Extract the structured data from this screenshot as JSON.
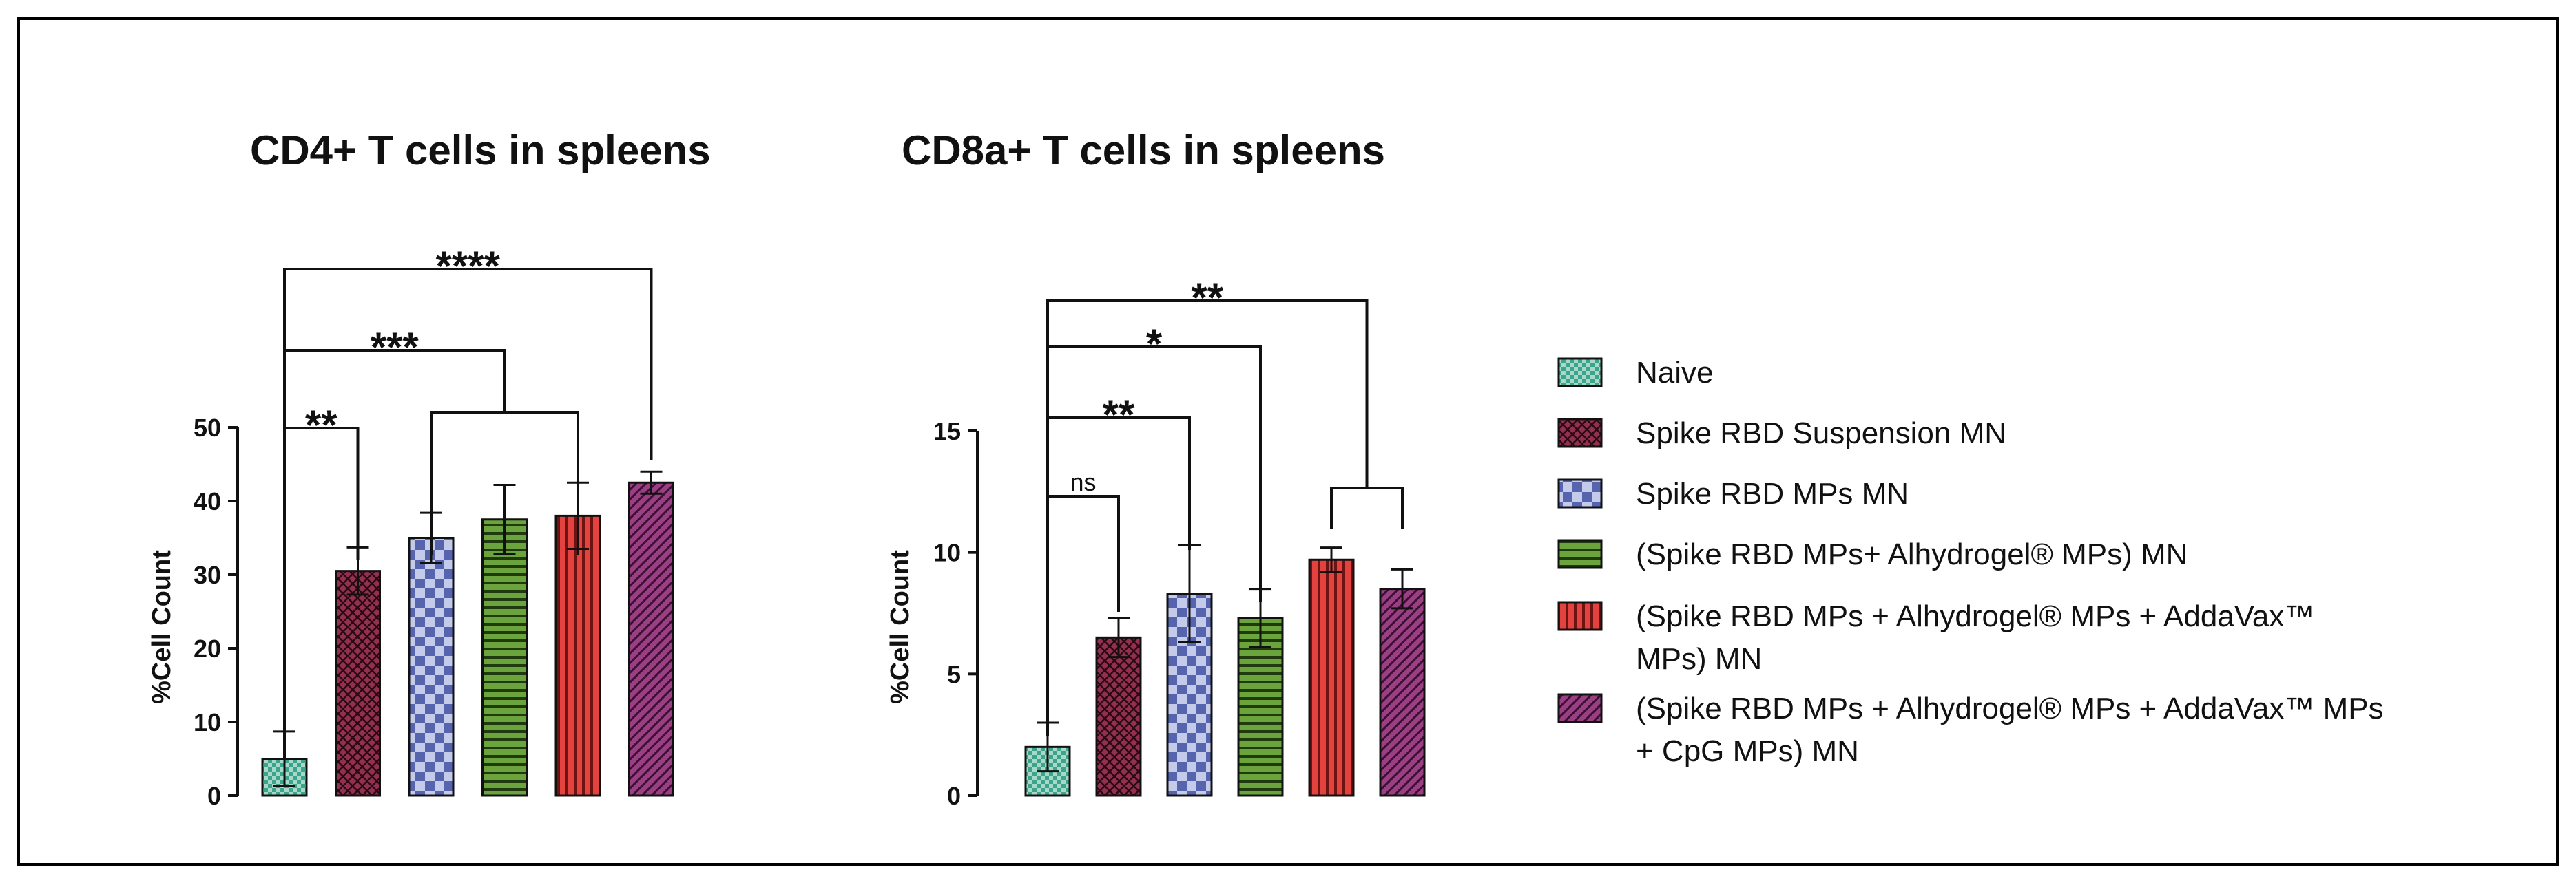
{
  "chart_data": [
    {
      "type": "bar",
      "title": "CD4+ T cells in spleens",
      "xlabel": "",
      "ylabel": "%Cell Count",
      "ylim": [
        0,
        50
      ],
      "yticks": [
        "0",
        "10",
        "20",
        "30",
        "40",
        "50"
      ],
      "categories": [
        "Naive",
        "Spike RBD Suspension MN",
        "Spike RBD MPs MN",
        "(Spike RBD MPs+ Alhydrogel® MPs) MN",
        "(Spike RBD MPs + Alhydrogel® MPs + AddaVax™ MPs) MN",
        "(Spike RBD MPs + Alhydrogel® MPs + AddaVax™ MPs + CpG MPs) MN"
      ],
      "values": [
        5.0,
        30.5,
        35.0,
        37.5,
        38.0,
        42.5
      ],
      "errors": [
        3.7,
        3.2,
        3.4,
        4.7,
        4.5,
        1.5
      ],
      "significance": [
        {
          "from": 0,
          "to": 1,
          "label": "**"
        },
        {
          "from": 0,
          "to_group": [
            2,
            4
          ],
          "label": "***"
        },
        {
          "from": 0,
          "to": 5,
          "label": "****"
        }
      ]
    },
    {
      "type": "bar",
      "title": "CD8a+ T cells in spleens",
      "xlabel": "",
      "ylabel": "%Cell Count",
      "ylim": [
        0,
        15
      ],
      "yticks": [
        "0",
        "5",
        "10",
        "15"
      ],
      "categories": [
        "Naive",
        "Spike RBD Suspension MN",
        "Spike RBD MPs MN",
        "(Spike RBD MPs+ Alhydrogel® MPs) MN",
        "(Spike RBD MPs + Alhydrogel® MPs + AddaVax™ MPs) MN",
        "(Spike RBD MPs + Alhydrogel® MPs + AddaVax™ MPs + CpG MPs) MN"
      ],
      "values": [
        2.0,
        6.5,
        8.3,
        7.3,
        9.7,
        8.5
      ],
      "errors": [
        1.0,
        0.8,
        2.0,
        1.2,
        0.5,
        0.8
      ],
      "significance": [
        {
          "from": 0,
          "to": 1,
          "label": "ns"
        },
        {
          "from": 0,
          "to": 2,
          "label": "**"
        },
        {
          "from": 0,
          "to": 3,
          "label": "*"
        },
        {
          "from": 0,
          "to_group": [
            4,
            5
          ],
          "label": "**"
        }
      ]
    }
  ],
  "legend": [
    {
      "label": "Naive",
      "color": "#3aa58c",
      "pattern": "checker-fine"
    },
    {
      "label": "Spike RBD Suspension MN",
      "color": "#93304f",
      "pattern": "crosshatch"
    },
    {
      "label": "Spike RBD MPs MN",
      "color": "#5564ad",
      "pattern": "checker"
    },
    {
      "label": "(Spike RBD MPs+ Alhydrogel® MPs) MN",
      "color": "#6ba33c",
      "pattern": "horizontal-stripes"
    },
    {
      "label": "(Spike RBD MPs + Alhydrogel® MPs + AddaVax™ MPs) MN",
      "color": "#e3423f",
      "pattern": "vertical-stripes"
    },
    {
      "label": "(Spike RBD MPs + Alhydrogel® MPs + AddaVax™ MPs + CpG MPs) MN",
      "color": "#9b3f85",
      "pattern": "diagonal-stripes"
    }
  ],
  "legend_lines": [
    [
      "Naive"
    ],
    [
      "Spike RBD Suspension MN"
    ],
    [
      "Spike RBD MPs MN"
    ],
    [
      "(Spike RBD MPs+ Alhydrogel® MPs) MN"
    ],
    [
      "(Spike RBD MPs + Alhydrogel® MPs + AddaVax™",
      "MPs) MN"
    ],
    [
      "(Spike RBD MPs + Alhydrogel® MPs + AddaVax™ MPs",
      "+ CpG MPs) MN"
    ]
  ]
}
